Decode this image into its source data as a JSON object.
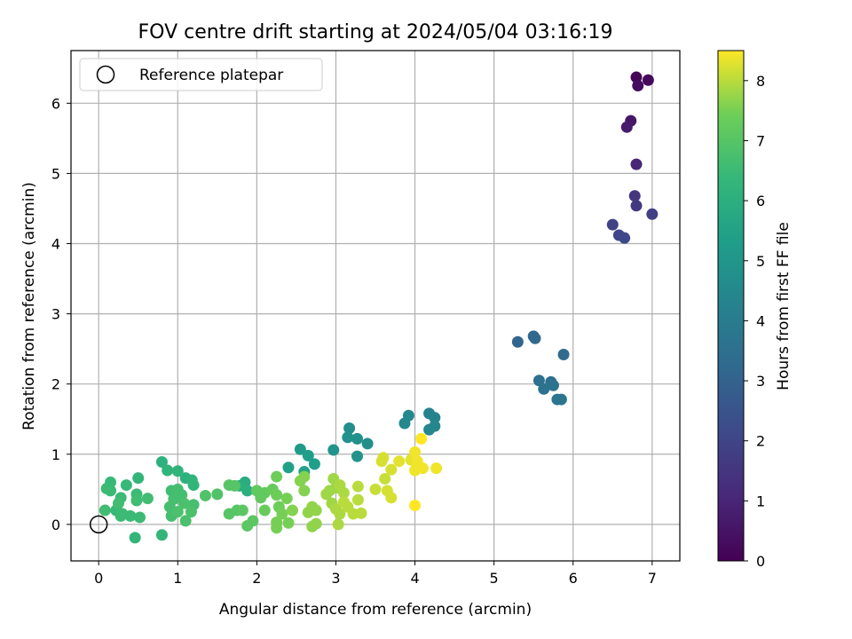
{
  "chart_data": {
    "type": "scatter",
    "title": "FOV centre drift starting at 2024/05/04 03:16:19",
    "xlabel": "Angular distance from reference (arcmin)",
    "ylabel": "Rotation from reference (arcmin)",
    "colorbar_label": "Hours from first FF file",
    "xlim": [
      -0.35,
      7.35
    ],
    "ylim": [
      -0.52,
      6.75
    ],
    "clim": [
      0,
      8.5
    ],
    "xticks": [
      0,
      1,
      2,
      3,
      4,
      5,
      6,
      7
    ],
    "yticks": [
      0,
      1,
      2,
      3,
      4,
      5,
      6
    ],
    "colorbar_ticks": [
      0,
      1,
      2,
      3,
      4,
      5,
      6,
      7,
      8
    ],
    "grid": true,
    "colormap": "viridis",
    "legend": {
      "placement": "top-left",
      "entries": [
        {
          "label": "Reference platepar",
          "marker": "open-circle",
          "x": 0,
          "y": 0
        }
      ]
    },
    "points": [
      {
        "x": 6.8,
        "y": 6.37,
        "c": 0.1
      },
      {
        "x": 6.95,
        "y": 6.33,
        "c": 0.2
      },
      {
        "x": 6.82,
        "y": 6.25,
        "c": 0.3
      },
      {
        "x": 6.73,
        "y": 5.75,
        "c": 0.6
      },
      {
        "x": 6.68,
        "y": 5.66,
        "c": 0.7
      },
      {
        "x": 6.8,
        "y": 5.13,
        "c": 1.0
      },
      {
        "x": 6.78,
        "y": 4.68,
        "c": 1.5
      },
      {
        "x": 6.8,
        "y": 4.54,
        "c": 1.6
      },
      {
        "x": 7.0,
        "y": 4.42,
        "c": 1.8
      },
      {
        "x": 6.5,
        "y": 4.27,
        "c": 1.9
      },
      {
        "x": 6.58,
        "y": 4.12,
        "c": 2.0
      },
      {
        "x": 6.65,
        "y": 4.08,
        "c": 2.1
      },
      {
        "x": 5.3,
        "y": 2.6,
        "c": 3.1
      },
      {
        "x": 5.5,
        "y": 2.68,
        "c": 3.2
      },
      {
        "x": 5.52,
        "y": 2.65,
        "c": 3.2
      },
      {
        "x": 5.88,
        "y": 2.42,
        "c": 3.3
      },
      {
        "x": 5.57,
        "y": 2.05,
        "c": 3.5
      },
      {
        "x": 5.72,
        "y": 2.03,
        "c": 3.5
      },
      {
        "x": 5.75,
        "y": 1.98,
        "c": 3.6
      },
      {
        "x": 5.63,
        "y": 1.93,
        "c": 3.6
      },
      {
        "x": 5.8,
        "y": 1.78,
        "c": 3.7
      },
      {
        "x": 5.85,
        "y": 1.78,
        "c": 3.7
      },
      {
        "x": 4.18,
        "y": 1.58,
        "c": 4.3
      },
      {
        "x": 4.25,
        "y": 1.52,
        "c": 4.3
      },
      {
        "x": 3.92,
        "y": 1.55,
        "c": 4.5
      },
      {
        "x": 3.87,
        "y": 1.44,
        "c": 4.5
      },
      {
        "x": 4.25,
        "y": 1.4,
        "c": 4.4
      },
      {
        "x": 4.18,
        "y": 1.35,
        "c": 4.4
      },
      {
        "x": 3.17,
        "y": 1.37,
        "c": 4.7
      },
      {
        "x": 3.15,
        "y": 1.24,
        "c": 4.8
      },
      {
        "x": 3.27,
        "y": 1.22,
        "c": 4.8
      },
      {
        "x": 3.4,
        "y": 1.15,
        "c": 4.7
      },
      {
        "x": 2.97,
        "y": 1.06,
        "c": 4.9
      },
      {
        "x": 3.27,
        "y": 0.97,
        "c": 4.9
      },
      {
        "x": 2.55,
        "y": 1.07,
        "c": 5.2
      },
      {
        "x": 2.65,
        "y": 0.98,
        "c": 5.3
      },
      {
        "x": 2.73,
        "y": 0.86,
        "c": 5.3
      },
      {
        "x": 2.4,
        "y": 0.81,
        "c": 5.4
      },
      {
        "x": 2.6,
        "y": 0.75,
        "c": 5.5
      },
      {
        "x": 1.85,
        "y": 0.6,
        "c": 5.9
      },
      {
        "x": 1.88,
        "y": 0.48,
        "c": 6.0
      },
      {
        "x": 1.78,
        "y": 0.55,
        "c": 6.0
      },
      {
        "x": 0.8,
        "y": 0.89,
        "c": 6.1
      },
      {
        "x": 0.87,
        "y": 0.77,
        "c": 6.2
      },
      {
        "x": 1.0,
        "y": 0.76,
        "c": 6.2
      },
      {
        "x": 1.1,
        "y": 0.66,
        "c": 6.1
      },
      {
        "x": 1.18,
        "y": 0.63,
        "c": 6.2
      },
      {
        "x": 1.2,
        "y": 0.56,
        "c": 6.3
      },
      {
        "x": 0.5,
        "y": 0.66,
        "c": 6.3
      },
      {
        "x": 0.15,
        "y": 0.6,
        "c": 6.4
      },
      {
        "x": 0.35,
        "y": 0.56,
        "c": 6.4
      },
      {
        "x": 0.1,
        "y": 0.51,
        "c": 6.5
      },
      {
        "x": 0.15,
        "y": 0.48,
        "c": 6.5
      },
      {
        "x": 0.48,
        "y": 0.43,
        "c": 6.5
      },
      {
        "x": 0.62,
        "y": 0.37,
        "c": 6.6
      },
      {
        "x": 0.48,
        "y": 0.34,
        "c": 6.6
      },
      {
        "x": 0.28,
        "y": 0.38,
        "c": 6.5
      },
      {
        "x": 0.25,
        "y": 0.3,
        "c": 6.6
      },
      {
        "x": 0.22,
        "y": 0.2,
        "c": 6.4
      },
      {
        "x": 0.3,
        "y": 0.15,
        "c": 6.5
      },
      {
        "x": 0.28,
        "y": 0.12,
        "c": 6.5
      },
      {
        "x": 0.4,
        "y": 0.12,
        "c": 6.5
      },
      {
        "x": 0.52,
        "y": 0.1,
        "c": 6.5
      },
      {
        "x": 0.08,
        "y": 0.2,
        "c": 6.6
      },
      {
        "x": 0.46,
        "y": -0.19,
        "c": 6.3
      },
      {
        "x": 0.8,
        "y": -0.15,
        "c": 6.3
      },
      {
        "x": 0.92,
        "y": 0.48,
        "c": 6.6
      },
      {
        "x": 1.0,
        "y": 0.5,
        "c": 6.7
      },
      {
        "x": 1.05,
        "y": 0.42,
        "c": 6.7
      },
      {
        "x": 0.95,
        "y": 0.36,
        "c": 6.7
      },
      {
        "x": 1.08,
        "y": 0.3,
        "c": 6.8
      },
      {
        "x": 0.9,
        "y": 0.25,
        "c": 6.7
      },
      {
        "x": 0.92,
        "y": 0.12,
        "c": 6.7
      },
      {
        "x": 1.0,
        "y": 0.18,
        "c": 6.8
      },
      {
        "x": 1.1,
        "y": 0.05,
        "c": 6.8
      },
      {
        "x": 1.2,
        "y": 0.28,
        "c": 6.7
      },
      {
        "x": 1.17,
        "y": 0.18,
        "c": 6.8
      },
      {
        "x": 1.35,
        "y": 0.41,
        "c": 6.9
      },
      {
        "x": 1.5,
        "y": 0.43,
        "c": 6.9
      },
      {
        "x": 1.65,
        "y": 0.56,
        "c": 7.0
      },
      {
        "x": 1.72,
        "y": 0.55,
        "c": 7.0
      },
      {
        "x": 1.65,
        "y": 0.15,
        "c": 7.0
      },
      {
        "x": 1.75,
        "y": 0.2,
        "c": 7.0
      },
      {
        "x": 1.82,
        "y": 0.2,
        "c": 7.1
      },
      {
        "x": 1.88,
        "y": -0.02,
        "c": 7.1
      },
      {
        "x": 1.95,
        "y": 0.05,
        "c": 7.1
      },
      {
        "x": 2.0,
        "y": 0.48,
        "c": 7.2
      },
      {
        "x": 2.1,
        "y": 0.45,
        "c": 7.2
      },
      {
        "x": 2.05,
        "y": 0.38,
        "c": 7.2
      },
      {
        "x": 2.1,
        "y": 0.2,
        "c": 7.3
      },
      {
        "x": 2.2,
        "y": 0.5,
        "c": 7.3
      },
      {
        "x": 2.25,
        "y": 0.68,
        "c": 7.4
      },
      {
        "x": 2.25,
        "y": 0.42,
        "c": 7.4
      },
      {
        "x": 2.28,
        "y": 0.25,
        "c": 7.4
      },
      {
        "x": 2.32,
        "y": 0.15,
        "c": 7.5
      },
      {
        "x": 2.25,
        "y": 0.03,
        "c": 7.5
      },
      {
        "x": 2.25,
        "y": -0.05,
        "c": 7.5
      },
      {
        "x": 2.4,
        "y": 0.02,
        "c": 7.5
      },
      {
        "x": 2.38,
        "y": 0.37,
        "c": 7.5
      },
      {
        "x": 2.45,
        "y": 0.2,
        "c": 7.6
      },
      {
        "x": 2.55,
        "y": 0.62,
        "c": 7.6
      },
      {
        "x": 2.6,
        "y": 0.68,
        "c": 7.6
      },
      {
        "x": 2.6,
        "y": 0.48,
        "c": 7.6
      },
      {
        "x": 2.65,
        "y": 0.17,
        "c": 7.7
      },
      {
        "x": 2.7,
        "y": -0.03,
        "c": 7.7
      },
      {
        "x": 2.75,
        "y": 0.01,
        "c": 7.7
      },
      {
        "x": 2.7,
        "y": 0.25,
        "c": 7.7
      },
      {
        "x": 2.75,
        "y": 0.2,
        "c": 7.7
      },
      {
        "x": 2.88,
        "y": 0.43,
        "c": 7.8
      },
      {
        "x": 2.92,
        "y": 0.48,
        "c": 7.8
      },
      {
        "x": 2.97,
        "y": 0.65,
        "c": 7.8
      },
      {
        "x": 3.0,
        "y": 0.52,
        "c": 7.8
      },
      {
        "x": 3.05,
        "y": 0.56,
        "c": 7.9
      },
      {
        "x": 2.95,
        "y": 0.3,
        "c": 7.8
      },
      {
        "x": 3.0,
        "y": 0.22,
        "c": 7.9
      },
      {
        "x": 3.05,
        "y": 0.15,
        "c": 7.9
      },
      {
        "x": 3.03,
        "y": 0.0,
        "c": 7.9
      },
      {
        "x": 3.1,
        "y": 0.45,
        "c": 7.9
      },
      {
        "x": 3.1,
        "y": 0.32,
        "c": 8.0
      },
      {
        "x": 3.15,
        "y": 0.25,
        "c": 8.0
      },
      {
        "x": 3.22,
        "y": 0.15,
        "c": 8.0
      },
      {
        "x": 3.28,
        "y": 0.54,
        "c": 8.0
      },
      {
        "x": 3.28,
        "y": 0.35,
        "c": 8.0
      },
      {
        "x": 3.32,
        "y": 0.16,
        "c": 8.0
      },
      {
        "x": 3.5,
        "y": 0.5,
        "c": 8.1
      },
      {
        "x": 3.58,
        "y": 0.9,
        "c": 8.2
      },
      {
        "x": 3.6,
        "y": 0.95,
        "c": 8.2
      },
      {
        "x": 3.62,
        "y": 0.65,
        "c": 8.1
      },
      {
        "x": 3.65,
        "y": 0.48,
        "c": 8.2
      },
      {
        "x": 3.7,
        "y": 0.38,
        "c": 8.2
      },
      {
        "x": 3.7,
        "y": 0.78,
        "c": 8.2
      },
      {
        "x": 3.8,
        "y": 0.9,
        "c": 8.3
      },
      {
        "x": 3.95,
        "y": 0.92,
        "c": 8.3
      },
      {
        "x": 4.0,
        "y": 1.03,
        "c": 8.4
      },
      {
        "x": 4.03,
        "y": 0.9,
        "c": 8.4
      },
      {
        "x": 4.0,
        "y": 0.77,
        "c": 8.4
      },
      {
        "x": 4.05,
        "y": 0.83,
        "c": 8.4
      },
      {
        "x": 4.1,
        "y": 0.8,
        "c": 8.4
      },
      {
        "x": 4.08,
        "y": 1.22,
        "c": 8.5
      },
      {
        "x": 4.27,
        "y": 0.8,
        "c": 8.4
      },
      {
        "x": 4.0,
        "y": 0.27,
        "c": 8.5
      }
    ]
  }
}
